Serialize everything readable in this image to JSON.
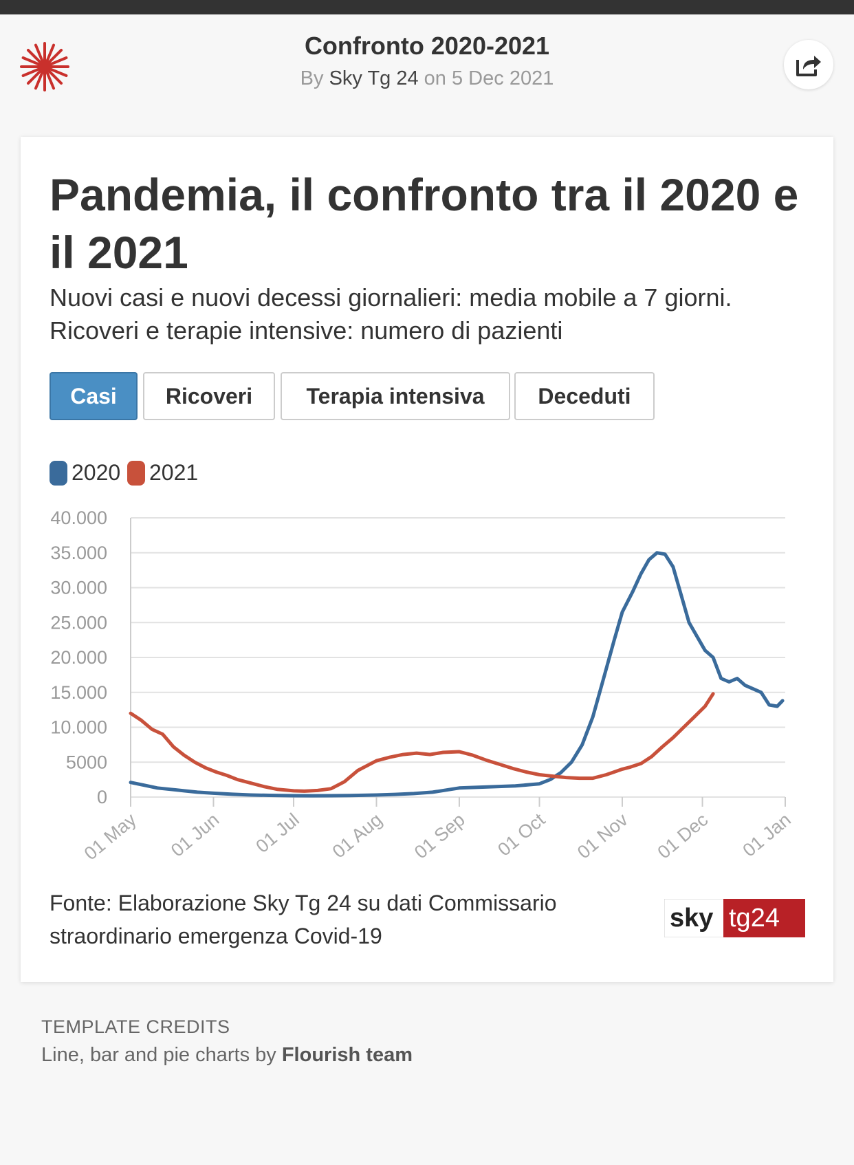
{
  "header": {
    "title": "Confronto 2020-2021",
    "by_prefix": "By",
    "author": "Sky Tg 24",
    "date_prefix": "on",
    "date": "5 Dec 2021"
  },
  "chart": {
    "title": "Pandemia, il confronto tra il 2020 e il 2021",
    "subtitle_line1": "Nuovi casi e nuovi decessi giornalieri: media mobile a 7 giorni.",
    "subtitle_line2": "Ricoveri e terapie intensive: numero di pazienti",
    "tabs": [
      "Casi",
      "Ricoveri",
      "Terapia intensiva",
      "Deceduti"
    ],
    "active_tab": "Casi",
    "source_line1": "Fonte: Elaborazione Sky Tg 24 su dati Commissario",
    "source_line2": "straordinario emergenza Covid-19"
  },
  "brand": {
    "part1": "sky",
    "part2": "tg24"
  },
  "credits": {
    "heading": "TEMPLATE CREDITS",
    "text": "Line, bar and pie charts by",
    "team": "Flourish team"
  },
  "colors": {
    "series_2020": "#3a6b9b",
    "series_2021": "#c8513b",
    "active_tab": "#4a8fc4",
    "logo_red": "#c9302c"
  },
  "icons": {
    "logo": "sunburst-logo-icon",
    "share": "share-icon"
  },
  "chart_data": {
    "type": "line",
    "title": "Pandemia, il confronto tra il 2020 e il 2021",
    "xlabel": "",
    "ylabel": "",
    "ylim": [
      0,
      40000
    ],
    "y_ticks": [
      {
        "value": 0,
        "label": "0"
      },
      {
        "value": 5000,
        "label": "5000"
      },
      {
        "value": 10000,
        "label": "10.000"
      },
      {
        "value": 15000,
        "label": "15.000"
      },
      {
        "value": 20000,
        "label": "20.000"
      },
      {
        "value": 25000,
        "label": "25.000"
      },
      {
        "value": 30000,
        "label": "30.000"
      },
      {
        "value": 35000,
        "label": "35.000"
      },
      {
        "value": 40000,
        "label": "40.000"
      }
    ],
    "x_domain": [
      "01 May",
      "01 Jan"
    ],
    "x_ticks": [
      {
        "date": "01 May",
        "label": "01 May"
      },
      {
        "date": "01 Jun",
        "label": "01 Jun"
      },
      {
        "date": "01 Jul",
        "label": "01 Jul"
      },
      {
        "date": "01 Aug",
        "label": "01 Aug"
      },
      {
        "date": "01 Sep",
        "label": "01 Sep"
      },
      {
        "date": "01 Oct",
        "label": "01 Oct"
      },
      {
        "date": "01 Nov",
        "label": "01 Nov"
      },
      {
        "date": "01 Dec",
        "label": "01 Dec"
      },
      {
        "date": "01 Jan",
        "label": "01 Jan"
      }
    ],
    "grid": true,
    "legend_position": "top-left",
    "series": [
      {
        "name": "2020",
        "color": "#3a6b9b",
        "points": [
          [
            "01 May",
            2100
          ],
          [
            "06 May",
            1700
          ],
          [
            "11 May",
            1300
          ],
          [
            "16 May",
            1100
          ],
          [
            "21 May",
            900
          ],
          [
            "26 May",
            700
          ],
          [
            "01 Jun",
            550
          ],
          [
            "08 Jun",
            400
          ],
          [
            "15 Jun",
            300
          ],
          [
            "22 Jun",
            250
          ],
          [
            "01 Jul",
            200
          ],
          [
            "08 Jul",
            190
          ],
          [
            "15 Jul",
            200
          ],
          [
            "22 Jul",
            230
          ],
          [
            "01 Aug",
            300
          ],
          [
            "08 Aug",
            380
          ],
          [
            "15 Aug",
            500
          ],
          [
            "22 Aug",
            700
          ],
          [
            "01 Sep",
            1300
          ],
          [
            "08 Sep",
            1400
          ],
          [
            "15 Sep",
            1500
          ],
          [
            "22 Sep",
            1600
          ],
          [
            "01 Oct",
            1900
          ],
          [
            "05 Oct",
            2500
          ],
          [
            "09 Oct",
            3500
          ],
          [
            "13 Oct",
            5000
          ],
          [
            "17 Oct",
            7500
          ],
          [
            "21 Oct",
            11500
          ],
          [
            "25 Oct",
            17000
          ],
          [
            "29 Oct",
            22500
          ],
          [
            "01 Nov",
            26500
          ],
          [
            "05 Nov",
            29500
          ],
          [
            "08 Nov",
            32000
          ],
          [
            "11 Nov",
            34000
          ],
          [
            "14 Nov",
            35000
          ],
          [
            "17 Nov",
            34800
          ],
          [
            "20 Nov",
            33000
          ],
          [
            "23 Nov",
            29000
          ],
          [
            "26 Nov",
            25000
          ],
          [
            "29 Nov",
            23000
          ],
          [
            "02 Dec",
            21000
          ],
          [
            "05 Dec",
            20000
          ],
          [
            "08 Dec",
            17000
          ],
          [
            "11 Dec",
            16500
          ],
          [
            "14 Dec",
            17000
          ],
          [
            "17 Dec",
            16000
          ],
          [
            "20 Dec",
            15500
          ],
          [
            "23 Dec",
            15000
          ],
          [
            "26 Dec",
            13200
          ],
          [
            "29 Dec",
            13000
          ],
          [
            "31 Dec",
            13800
          ]
        ]
      },
      {
        "name": "2021",
        "color": "#c8513b",
        "points": [
          [
            "01 May",
            12000
          ],
          [
            "05 May",
            11000
          ],
          [
            "09 May",
            9700
          ],
          [
            "13 May",
            9000
          ],
          [
            "17 May",
            7200
          ],
          [
            "21 May",
            6000
          ],
          [
            "25 May",
            5000
          ],
          [
            "29 May",
            4200
          ],
          [
            "02 Jun",
            3600
          ],
          [
            "06 Jun",
            3100
          ],
          [
            "10 Jun",
            2500
          ],
          [
            "15 Jun",
            2000
          ],
          [
            "20 Jun",
            1500
          ],
          [
            "25 Jun",
            1100
          ],
          [
            "01 Jul",
            900
          ],
          [
            "05 Jul",
            850
          ],
          [
            "10 Jul",
            950
          ],
          [
            "15 Jul",
            1200
          ],
          [
            "20 Jul",
            2200
          ],
          [
            "25 Jul",
            3800
          ],
          [
            "01 Aug",
            5200
          ],
          [
            "06 Aug",
            5700
          ],
          [
            "11 Aug",
            6100
          ],
          [
            "16 Aug",
            6300
          ],
          [
            "21 Aug",
            6100
          ],
          [
            "26 Aug",
            6400
          ],
          [
            "01 Sep",
            6500
          ],
          [
            "06 Sep",
            6000
          ],
          [
            "11 Sep",
            5300
          ],
          [
            "16 Sep",
            4700
          ],
          [
            "21 Sep",
            4100
          ],
          [
            "26 Sep",
            3600
          ],
          [
            "01 Oct",
            3200
          ],
          [
            "06 Oct",
            3000
          ],
          [
            "11 Oct",
            2800
          ],
          [
            "16 Oct",
            2700
          ],
          [
            "21 Oct",
            2700
          ],
          [
            "26 Oct",
            3200
          ],
          [
            "01 Nov",
            4000
          ],
          [
            "04 Nov",
            4300
          ],
          [
            "08 Nov",
            4800
          ],
          [
            "12 Nov",
            5800
          ],
          [
            "16 Nov",
            7200
          ],
          [
            "20 Nov",
            8500
          ],
          [
            "24 Nov",
            10000
          ],
          [
            "28 Nov",
            11500
          ],
          [
            "02 Dec",
            13000
          ],
          [
            "05 Dec",
            14800
          ]
        ]
      }
    ]
  }
}
